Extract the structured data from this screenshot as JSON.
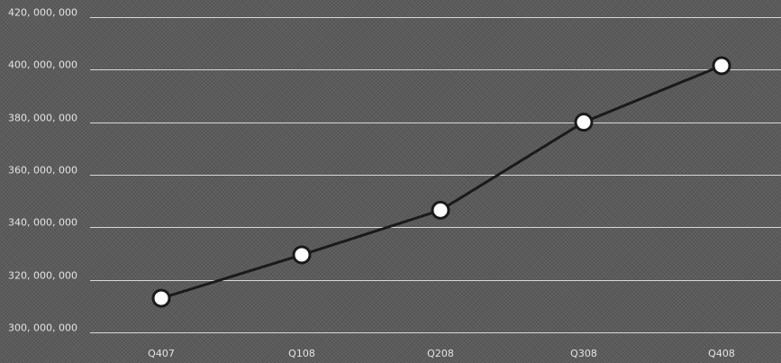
{
  "chart_data": {
    "type": "line",
    "title": "",
    "xlabel": "",
    "ylabel": "",
    "categories": [
      "Q407",
      "Q108",
      "Q208",
      "Q308",
      "Q408"
    ],
    "series": [
      {
        "values": [
          313000000,
          329500000,
          346500000,
          380000000,
          401500000
        ]
      }
    ],
    "ylim": [
      300000000,
      420000000
    ],
    "yticks": [
      300000000,
      320000000,
      340000000,
      360000000,
      380000000,
      400000000,
      420000000
    ],
    "ytick_labels": [
      "300, 000, 000",
      "320, 000, 000",
      "340, 000, 000",
      "360, 000, 000",
      "380, 000, 000",
      "400, 000, 000",
      "420, 000, 000"
    ],
    "grid": true,
    "legend": "none",
    "colors": {
      "background": "#5b5b5b",
      "gridline": "#d8d8d8",
      "line": "#1a1a1a",
      "marker_fill": "#ffffff",
      "marker_stroke": "#1a1a1a",
      "tick_text": "#e4e4e4"
    }
  }
}
